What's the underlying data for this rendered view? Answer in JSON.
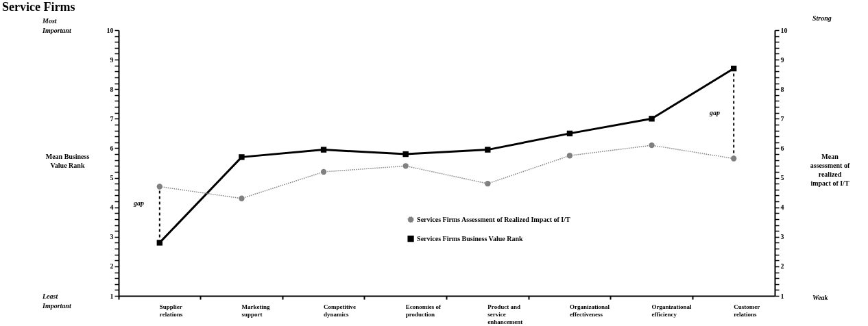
{
  "chart_data": {
    "type": "line",
    "title": "Service Firms",
    "ylabel": "Mean Business Value Rank",
    "y2label": "Mean assessment of realized impact of I/T",
    "categories": [
      "Supplier relations",
      "Marketing support",
      "Competitive dynamics",
      "Economies of production",
      "Product and service enhancement",
      "Organizational effectiveness",
      "Organizational efficiency",
      "Customer relations"
    ],
    "series": [
      {
        "name": "Services Firms Assessment of Realized Impact of I/T",
        "color": "#808080",
        "axis": "y2",
        "marker": "circle",
        "line_style": "dotted",
        "values": [
          4.7,
          4.3,
          5.2,
          5.4,
          4.8,
          5.75,
          6.1,
          5.65
        ]
      },
      {
        "name": "Services Firms Business Value Rank",
        "color": "#000000",
        "axis": "y",
        "marker": "square",
        "line_style": "solid",
        "values": [
          2.8,
          5.7,
          5.95,
          5.8,
          5.95,
          6.5,
          7.0,
          8.7
        ]
      }
    ],
    "ylim": [
      1,
      10
    ],
    "y2lim": [
      1,
      10
    ],
    "yticks": [
      1,
      {
        "value": 1.2,
        "label": null
      },
      {
        "value": 1.4,
        "label": null
      },
      {
        "value": 1.6,
        "label": null
      },
      {
        "value": 1.8,
        "label": null
      },
      2,
      {
        "value": 2.2,
        "label": null
      },
      {
        "value": 2.4,
        "label": null
      },
      {
        "value": 2.6,
        "label": null
      },
      {
        "value": 2.8,
        "label": null
      },
      3,
      {
        "value": 3.2,
        "label": null
      },
      {
        "value": 3.4,
        "label": null
      },
      {
        "value": 3.6,
        "label": null
      },
      {
        "value": 3.8,
        "label": null
      },
      4,
      {
        "value": 4.2,
        "label": null
      },
      {
        "value": 4.4,
        "label": null
      },
      {
        "value": 4.6,
        "label": null
      },
      {
        "value": 4.8,
        "label": null
      },
      5,
      {
        "value": 5.2,
        "label": null
      },
      {
        "value": 5.4,
        "label": null
      },
      {
        "value": 5.6,
        "label": null
      },
      {
        "value": 5.8,
        "label": null
      },
      6,
      {
        "value": 6.2,
        "label": null
      },
      {
        "value": 6.4,
        "label": null
      },
      {
        "value": 6.6,
        "label": null
      },
      {
        "value": 6.8,
        "label": null
      },
      7,
      {
        "value": 7.2,
        "label": null
      },
      {
        "value": 7.4,
        "label": null
      },
      {
        "value": 7.6,
        "label": null
      },
      {
        "value": 7.8,
        "label": null
      },
      8,
      {
        "value": 8.2,
        "label": null
      },
      {
        "value": 8.4,
        "label": null
      },
      {
        "value": 8.6,
        "label": null
      },
      {
        "value": 8.8,
        "label": null
      },
      9,
      {
        "value": 9.2,
        "label": null
      },
      {
        "value": 9.4,
        "label": null
      },
      {
        "value": 9.6,
        "label": null
      },
      {
        "value": 9.8,
        "label": null
      },
      10
    ],
    "y2ticks": [
      1,
      {
        "value": 1.2,
        "label": null
      },
      {
        "value": 1.4,
        "label": null
      },
      {
        "value": 1.6,
        "label": null
      },
      {
        "value": 1.8,
        "label": null
      },
      2,
      {
        "value": 2.2,
        "label": null
      },
      {
        "value": 2.4,
        "label": null
      },
      {
        "value": 2.6,
        "label": null
      },
      {
        "value": 2.8,
        "label": null
      },
      3,
      {
        "value": 3.2,
        "label": null
      },
      {
        "value": 3.4,
        "label": null
      },
      {
        "value": 3.6,
        "label": null
      },
      {
        "value": 3.8,
        "label": null
      },
      4,
      {
        "value": 4.2,
        "label": null
      },
      {
        "value": 4.4,
        "label": null
      },
      {
        "value": 4.6,
        "label": null
      },
      {
        "value": 4.8,
        "label": null
      },
      5,
      {
        "value": 5.2,
        "label": null
      },
      {
        "value": 5.4,
        "label": null
      },
      {
        "value": 5.6,
        "label": null
      },
      {
        "value": 5.8,
        "label": null
      },
      6,
      {
        "value": 6.2,
        "label": null
      },
      {
        "value": 6.4,
        "label": null
      },
      {
        "value": 6.6,
        "label": null
      },
      {
        "value": 6.8,
        "label": null
      },
      7,
      {
        "value": 7.2,
        "label": null
      },
      {
        "value": 7.4,
        "label": null
      },
      {
        "value": 7.6,
        "label": null
      },
      {
        "value": 7.8,
        "label": null
      },
      8,
      {
        "value": 8.2,
        "label": null
      },
      {
        "value": 8.4,
        "label": null
      },
      {
        "value": 8.6,
        "label": null
      },
      {
        "value": 8.8,
        "label": null
      },
      9,
      {
        "value": 9.2,
        "label": null
      },
      {
        "value": 9.4,
        "label": null
      },
      {
        "value": 9.6,
        "label": null
      },
      {
        "value": 9.8,
        "label": null
      },
      10
    ],
    "annotations": [
      "Most Important",
      "Least Important",
      "Strong",
      "Weak",
      "gap",
      "gap"
    ],
    "grid": false,
    "legend": "bottom"
  }
}
